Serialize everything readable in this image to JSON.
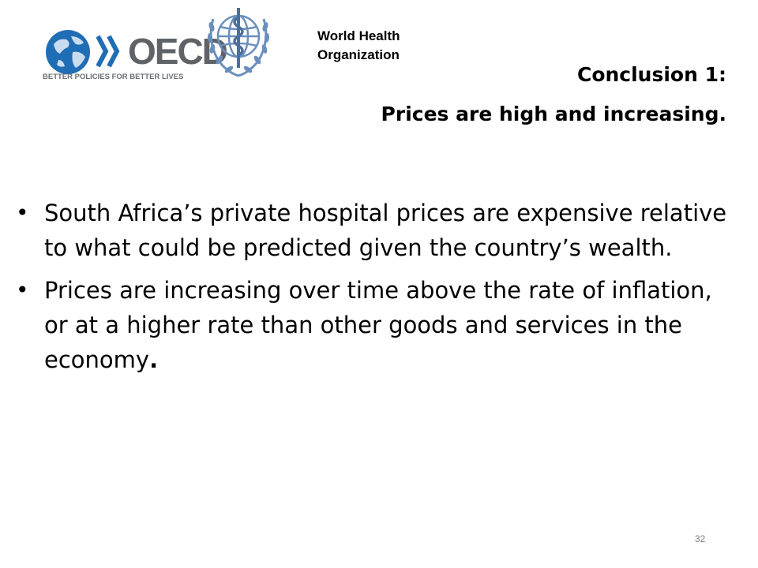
{
  "logos": {
    "oecd": {
      "wordmark": "OECD",
      "tagline": "BETTER POLICIES FOR BETTER LIVES",
      "colors": {
        "globe": "#1f6db5",
        "land": "#c9dcef",
        "text": "#5f6368"
      }
    },
    "who": {
      "name_line1": "World Health",
      "name_line2": "Organization",
      "colors": {
        "emblem": "#6a8fbd"
      }
    }
  },
  "slide": {
    "title_line1": "Conclusion 1:",
    "title_line2": "Prices are high and increasing.",
    "bullets": [
      {
        "text": "South Africa’s private hospital prices are expensive relative to what could be predicted given the country’s wealth."
      },
      {
        "text": "Prices are increasing over time above the rate of inflation, or at a higher rate than other goods and services in the economy",
        "trailing": "."
      }
    ],
    "page_number": "32"
  }
}
